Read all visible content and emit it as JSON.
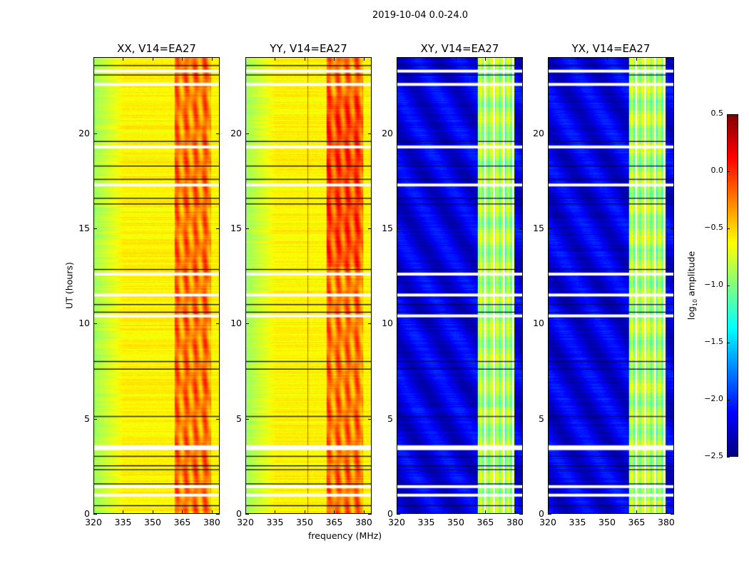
{
  "chart_data": {
    "type": "heatmap",
    "title": "2019-10-04 0.0-24.0",
    "xlabel": "frequency (MHz)",
    "ylabel": "UT (hours)",
    "panels": [
      {
        "title": "XX, V14=EA27",
        "kind": "parallel",
        "xlim": [
          320,
          384
        ],
        "ylim": [
          0,
          24
        ]
      },
      {
        "title": "YY, V14=EA27",
        "kind": "parallel",
        "xlim": [
          320,
          384
        ],
        "ylim": [
          0,
          24
        ]
      },
      {
        "title": "XY, V14=EA27",
        "kind": "cross",
        "xlim": [
          320,
          384
        ],
        "ylim": [
          0,
          24
        ]
      },
      {
        "title": "YX, V14=EA27",
        "kind": "cross",
        "xlim": [
          320,
          384
        ],
        "ylim": [
          0,
          24
        ]
      }
    ],
    "xticks": [
      "320",
      "335",
      "350",
      "365",
      "380"
    ],
    "xtick_values": [
      320,
      335,
      350,
      365,
      380
    ],
    "yticks": [
      "0",
      "5",
      "10",
      "15",
      "20"
    ],
    "ytick_values": [
      0,
      5,
      10,
      15,
      20
    ],
    "parallel_baseline_log_amp": [
      -0.9,
      -0.6
    ],
    "parallel_band_log_amp": [
      -0.4,
      0.1
    ],
    "cross_baseline_log_amp": -2.2,
    "cross_band_log_amp": [
      -1.1,
      -0.5
    ],
    "rfi_band_mhz": [
      361,
      380
    ],
    "flagged_hours_white": [
      0.95,
      1.4,
      3.4,
      3.5,
      10.4,
      11.5,
      12.6,
      17.3,
      19.3,
      22.6,
      23.3
    ],
    "flagged_hours_black": [
      0.4,
      1.55,
      2.3,
      2.5,
      3.0,
      5.1,
      7.6,
      8.0,
      10.6,
      11.0,
      12.85,
      16.3,
      16.6,
      17.6,
      18.3,
      19.6,
      23.1,
      23.6
    ],
    "colorbar": {
      "label": "log10 amplitude",
      "label_main": "log",
      "label_sub": "10",
      "label_rest": " amplitude",
      "range": [
        -2.5,
        0.5
      ],
      "ticks": [
        "0.5",
        "0.0",
        "−0.5",
        "−1.0",
        "−1.5",
        "−2.0",
        "−2.5"
      ],
      "tick_values": [
        0.5,
        0.0,
        -0.5,
        -1.0,
        -1.5,
        -2.0,
        -2.5
      ],
      "colormap": "jet"
    }
  }
}
